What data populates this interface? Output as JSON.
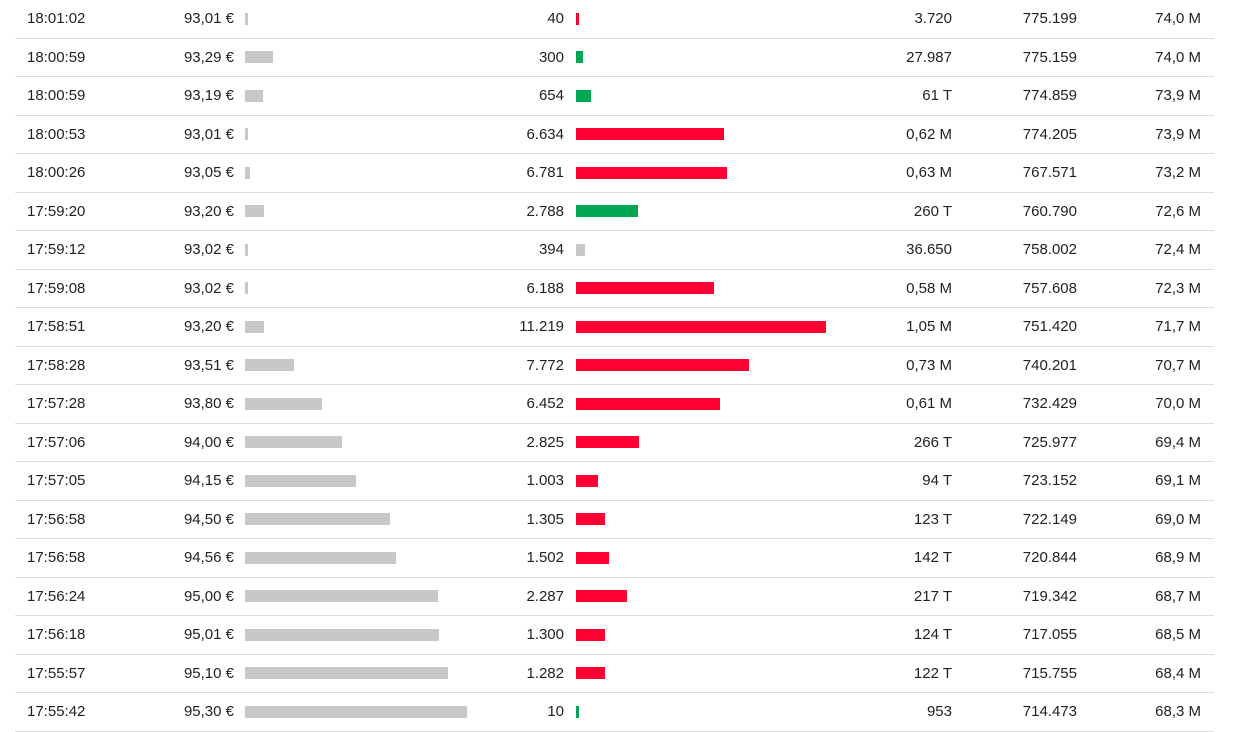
{
  "colors": {
    "up": "#00a651",
    "down": "#ff0033",
    "neutral": "#c8c8c8",
    "price_bar": "#c8c8c8",
    "divider": "#dcdcdc"
  },
  "rows": [
    {
      "time": "18:01:02",
      "price": "93,01 €",
      "volume": "40",
      "direction": "down",
      "turnover": "3.720",
      "cum_volume": "775.199",
      "cum_turnover": "74,0 M"
    },
    {
      "time": "18:00:59",
      "price": "93,29 €",
      "volume": "300",
      "direction": "up",
      "turnover": "27.987",
      "cum_volume": "775.159",
      "cum_turnover": "74,0 M"
    },
    {
      "time": "18:00:59",
      "price": "93,19 €",
      "volume": "654",
      "direction": "up",
      "turnover": "61 T",
      "cum_volume": "774.859",
      "cum_turnover": "73,9 M"
    },
    {
      "time": "18:00:53",
      "price": "93,01 €",
      "volume": "6.634",
      "direction": "down",
      "turnover": "0,62 M",
      "cum_volume": "774.205",
      "cum_turnover": "73,9 M"
    },
    {
      "time": "18:00:26",
      "price": "93,05 €",
      "volume": "6.781",
      "direction": "down",
      "turnover": "0,63 M",
      "cum_volume": "767.571",
      "cum_turnover": "73,2 M"
    },
    {
      "time": "17:59:20",
      "price": "93,20 €",
      "volume": "2.788",
      "direction": "up",
      "turnover": "260 T",
      "cum_volume": "760.790",
      "cum_turnover": "72,6 M"
    },
    {
      "time": "17:59:12",
      "price": "93,02 €",
      "volume": "394",
      "direction": "neutral",
      "turnover": "36.650",
      "cum_volume": "758.002",
      "cum_turnover": "72,4 M"
    },
    {
      "time": "17:59:08",
      "price": "93,02 €",
      "volume": "6.188",
      "direction": "down",
      "turnover": "0,58 M",
      "cum_volume": "757.608",
      "cum_turnover": "72,3 M"
    },
    {
      "time": "17:58:51",
      "price": "93,20 €",
      "volume": "11.219",
      "direction": "down",
      "turnover": "1,05 M",
      "cum_volume": "751.420",
      "cum_turnover": "71,7 M"
    },
    {
      "time": "17:58:28",
      "price": "93,51 €",
      "volume": "7.772",
      "direction": "down",
      "turnover": "0,73 M",
      "cum_volume": "740.201",
      "cum_turnover": "70,7 M"
    },
    {
      "time": "17:57:28",
      "price": "93,80 €",
      "volume": "6.452",
      "direction": "down",
      "turnover": "0,61 M",
      "cum_volume": "732.429",
      "cum_turnover": "70,0 M"
    },
    {
      "time": "17:57:06",
      "price": "94,00 €",
      "volume": "2.825",
      "direction": "down",
      "turnover": "266 T",
      "cum_volume": "725.977",
      "cum_turnover": "69,4 M"
    },
    {
      "time": "17:57:05",
      "price": "94,15 €",
      "volume": "1.003",
      "direction": "down",
      "turnover": "94 T",
      "cum_volume": "723.152",
      "cum_turnover": "69,1 M"
    },
    {
      "time": "17:56:58",
      "price": "94,50 €",
      "volume": "1.305",
      "direction": "down",
      "turnover": "123 T",
      "cum_volume": "722.149",
      "cum_turnover": "69,0 M"
    },
    {
      "time": "17:56:58",
      "price": "94,56 €",
      "volume": "1.502",
      "direction": "down",
      "turnover": "142 T",
      "cum_volume": "720.844",
      "cum_turnover": "68,9 M"
    },
    {
      "time": "17:56:24",
      "price": "95,00 €",
      "volume": "2.287",
      "direction": "down",
      "turnover": "217 T",
      "cum_volume": "719.342",
      "cum_turnover": "68,7 M"
    },
    {
      "time": "17:56:18",
      "price": "95,01 €",
      "volume": "1.300",
      "direction": "down",
      "turnover": "124 T",
      "cum_volume": "717.055",
      "cum_turnover": "68,5 M"
    },
    {
      "time": "17:55:57",
      "price": "95,10 €",
      "volume": "1.282",
      "direction": "down",
      "turnover": "122 T",
      "cum_volume": "715.755",
      "cum_turnover": "68,4 M"
    },
    {
      "time": "17:55:42",
      "price": "95,30 €",
      "volume": "10",
      "direction": "up",
      "turnover": "953",
      "cum_volume": "714.473",
      "cum_turnover": "68,3 M"
    }
  ]
}
